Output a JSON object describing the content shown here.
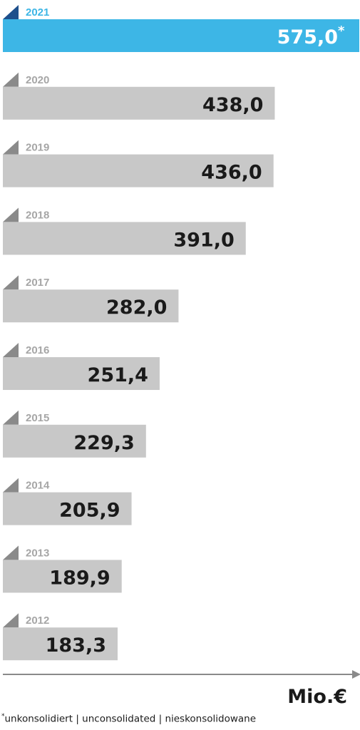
{
  "chart_data": {
    "type": "bar",
    "orientation": "horizontal",
    "categories": [
      "2021",
      "2020",
      "2019",
      "2018",
      "2017",
      "2016",
      "2015",
      "2014",
      "2013",
      "2012"
    ],
    "values": [
      575.0,
      438.0,
      436.0,
      391.0,
      282.0,
      251.4,
      229.3,
      205.9,
      189.9,
      183.3
    ],
    "value_labels": [
      "575,0",
      "438,0",
      "436,0",
      "391,0",
      "282,0",
      "251,4",
      "229,3",
      "205,9",
      "189,9",
      "183,3"
    ],
    "highlight_category": "2021",
    "highlight_marker": "*",
    "unit": "Mio.€",
    "footnote_marker": "*",
    "footnote_text": "unkonsolidiert | unconsolidated | nieskonsolidowane",
    "colors": {
      "highlight_bar": "#3db6e6",
      "highlight_label": "#3db6e6",
      "highlight_tab": "#1d4f8c",
      "bar": "#c8c8c8",
      "tab": "#8a8a8a",
      "year_label": "#a6a6a6",
      "value_text": "#1a1a1a",
      "highlight_value_text": "#ffffff",
      "axis": "#8a8a8a"
    }
  }
}
